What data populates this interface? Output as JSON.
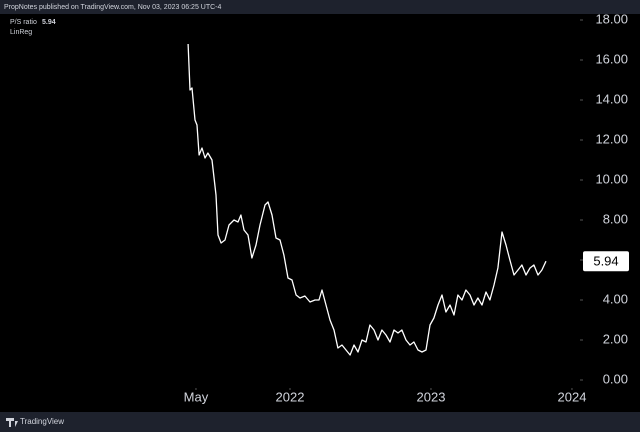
{
  "header": "PropNotes published on TradingView.com, Nov 03, 2023 06:25 UTC-4",
  "footer": "TradingView",
  "chart_data": {
    "type": "line",
    "title": "P/S ratio",
    "subtitle": "LinReg",
    "x": [
      2021.277,
      2021.291,
      2021.305,
      2021.326,
      2021.34,
      2021.355,
      2021.376,
      2021.397,
      2021.418,
      2021.447,
      2021.475,
      2021.489,
      2021.511,
      2021.539,
      2021.567,
      2021.603,
      2021.631,
      2021.652,
      2021.674,
      2021.702,
      2021.73,
      2021.759,
      2021.787,
      2021.823,
      2021.844,
      2021.872,
      2021.901,
      2021.929,
      2021.957,
      2021.986,
      2022.014,
      2022.043,
      2022.071,
      2022.106,
      2022.142,
      2022.177,
      2022.206,
      2022.227,
      2022.255,
      2022.284,
      2022.312,
      2022.34,
      2022.369,
      2022.397,
      2022.426,
      2022.454,
      2022.482,
      2022.511,
      2022.539,
      2022.567,
      2022.596,
      2022.624,
      2022.652,
      2022.681,
      2022.709,
      2022.738,
      2022.766,
      2022.794,
      2022.823,
      2022.851,
      2022.879,
      2022.908,
      2022.936,
      2022.965,
      2022.993,
      2023.021,
      2023.05,
      2023.078,
      2023.106,
      2023.135,
      2023.163,
      2023.191,
      2023.22,
      2023.248,
      2023.277,
      2023.305,
      2023.333,
      2023.362,
      2023.39,
      2023.418,
      2023.447,
      2023.475,
      2023.504,
      2023.532,
      2023.56,
      2023.589,
      2023.617,
      2023.645,
      2023.674,
      2023.702,
      2023.73,
      2023.759,
      2023.787,
      2023.816
    ],
    "series": [
      {
        "name": "P/S ratio",
        "color": "#ffffff",
        "values": [
          16.8,
          14.5,
          14.6,
          13,
          12.75,
          11.25,
          11.6,
          11.1,
          11.35,
          11.0,
          9.25,
          7.25,
          6.85,
          7.0,
          7.75,
          8.0,
          7.9,
          8.25,
          7.5,
          7.25,
          6.1,
          6.75,
          7.75,
          8.75,
          8.9,
          8.25,
          7.1,
          7.0,
          6.25,
          5.1,
          5.0,
          4.25,
          4.1,
          4.2,
          3.9,
          4.0,
          4.0,
          4.5,
          3.75,
          3.0,
          2.5,
          1.6,
          1.75,
          1.5,
          1.25,
          1.75,
          1.4,
          2.0,
          1.9,
          2.75,
          2.5,
          2.0,
          2.5,
          2.25,
          1.9,
          2.5,
          2.35,
          2.5,
          2.0,
          1.75,
          1.9,
          1.5,
          1.4,
          1.5,
          2.75,
          3.1,
          3.75,
          4.25,
          3.4,
          3.75,
          3.25,
          4.25,
          4.0,
          4.5,
          4.25,
          3.75,
          4.1,
          3.75,
          4.4,
          4.0,
          4.75,
          5.6,
          7.4,
          6.75,
          6.0,
          5.25,
          5.5,
          5.75,
          5.25,
          5.6,
          5.75,
          5.25,
          5.5,
          5.94
        ]
      }
    ],
    "xlim": [
      2019.943,
      2024.057
    ],
    "xticks": [
      {
        "value": 2021.333,
        "label": "May"
      },
      2022,
      2023,
      2024
    ],
    "ylim": [
      -0.4,
      19.0
    ],
    "yticks": [
      {
        "value": 0,
        "label": "0.00"
      },
      {
        "value": 2,
        "label": "2.00"
      },
      {
        "value": 4,
        "label": "4.00"
      },
      {
        "value": 6,
        "label": "6.00"
      },
      {
        "value": 8,
        "label": "8.00"
      },
      {
        "value": 10,
        "label": "10.00"
      },
      {
        "value": 12,
        "label": "12.00"
      },
      {
        "value": 14,
        "label": "14.00"
      },
      {
        "value": 16,
        "label": "16.00"
      },
      {
        "value": 18,
        "label": "18.00"
      }
    ],
    "grid": false
  }
}
